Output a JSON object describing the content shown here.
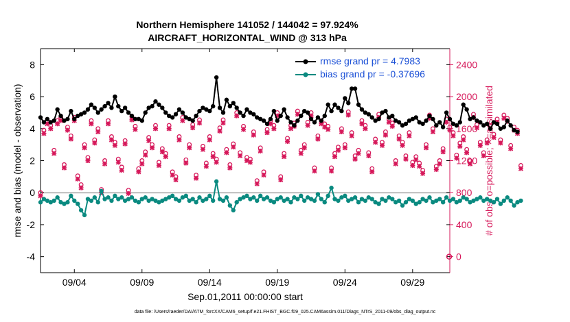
{
  "page": {
    "title_line1": "Northern Hemisphere 141052 / 144042 = 97.924%",
    "title_line2": "AIRCRAFT_HORIZONTAL_WIND @ 313 hPa",
    "footer": "data file: /Users/raeder/DAI/ATM_forcXX/CAM6_setup/f.e21.FHIST_BGC.f09_025.CAM6assim.011/Diags_NTrS_2011-09/obs_diag_output.nc"
  },
  "chart_data": {
    "type": "line",
    "title": "Northern Hemisphere 141052 / 144042 = 97.924%",
    "subtitle": "AIRCRAFT_HORIZONTAL_WIND @ 313 hPa",
    "xlabel": "Sep.01,2011 00:00:00 start",
    "ylabel_left": "rmse and bias (model - observation)",
    "ylabel_right": "# of obs: o=possible; ×=assimilated",
    "x_range_days": [
      0.5,
      30.75
    ],
    "x_tick_values": [
      3,
      8,
      13,
      18,
      23,
      28
    ],
    "x_tick_labels": [
      "09/04",
      "09/09",
      "09/14",
      "09/19",
      "09/24",
      "09/29"
    ],
    "ylim_left": [
      -5,
      9
    ],
    "yticks_left": [
      -4,
      -2,
      0,
      2,
      4,
      6,
      8
    ],
    "ylim_right": [
      -200,
      2600
    ],
    "yticks_right": [
      0,
      400,
      800,
      1200,
      1600,
      2000,
      2400
    ],
    "grid": false,
    "zero_line": true,
    "legend_position": "top-right",
    "colors": {
      "rmse": "#000000",
      "bias": "#0a8a80",
      "obs": "#d6185a",
      "legend_text": "#1a4fd6",
      "zero_line": "#bbbbbb"
    },
    "series": [
      {
        "name": "rmse grand pr = 4.7983",
        "axis": "left",
        "step_days": 0.25,
        "values": [
          4.7,
          4.4,
          4.6,
          4.4,
          4.5,
          5.2,
          4.8,
          4.5,
          4.6,
          5.1,
          4.6,
          4.8,
          4.9,
          5.0,
          5.2,
          5.5,
          5.3,
          5.0,
          5.2,
          5.4,
          5.6,
          5.3,
          6.0,
          5.4,
          5.1,
          5.3,
          5.0,
          4.8,
          4.6,
          4.6,
          4.5,
          5.0,
          5.3,
          5.4,
          5.7,
          5.5,
          5.3,
          5.0,
          4.8,
          4.7,
          4.9,
          5.2,
          5.0,
          4.7,
          4.6,
          4.5,
          4.8,
          5.1,
          5.3,
          5.2,
          5.1,
          5.4,
          7.2,
          5.3,
          5.0,
          5.8,
          5.4,
          5.6,
          5.3,
          5.0,
          4.8,
          5.2,
          5.0,
          4.9,
          4.7,
          4.6,
          4.5,
          4.3,
          4.6,
          5.1,
          4.5,
          4.8,
          5.2,
          4.7,
          4.4,
          4.2,
          4.5,
          4.8,
          5.1,
          5.0,
          4.6,
          4.4,
          4.7,
          4.5,
          4.8,
          5.5,
          5.1,
          5.5,
          5.3,
          5.1,
          5.9,
          5.6,
          6.5,
          6.5,
          5.5,
          5.2,
          5.0,
          4.9,
          4.7,
          4.5,
          4.6,
          5.0,
          5.1,
          4.7,
          4.8,
          4.5,
          4.4,
          4.2,
          4.3,
          4.5,
          4.6,
          4.7,
          4.4,
          4.3,
          4.5,
          4.8,
          4.6,
          4.2,
          4.4,
          4.1,
          5.0,
          4.6,
          4.3,
          4.2,
          4.4,
          5.5,
          5.2,
          4.6,
          4.7,
          4.5,
          4.4,
          4.2,
          4.3,
          4.0,
          4.4,
          4.3,
          4.0,
          4.1,
          4.5,
          4.2,
          3.9,
          3.8
        ]
      },
      {
        "name": "bias grand pr = -0.37696",
        "axis": "left",
        "step_days": 0.25,
        "values": [
          -0.6,
          -0.4,
          -0.5,
          -0.6,
          -0.5,
          -0.3,
          -0.6,
          -0.7,
          -0.6,
          -0.2,
          -0.5,
          -0.7,
          -1.1,
          -1.4,
          -0.4,
          -0.5,
          -0.3,
          -0.6,
          0.1,
          -0.4,
          -0.3,
          -0.5,
          -0.2,
          -0.4,
          -0.3,
          -0.5,
          -0.4,
          -0.3,
          -0.5,
          -0.6,
          -0.4,
          -0.3,
          -0.5,
          -0.4,
          -0.5,
          -0.6,
          -0.5,
          -0.4,
          -0.3,
          -0.2,
          -0.4,
          -0.5,
          -0.3,
          -0.2,
          -0.5,
          -0.4,
          -0.6,
          -0.3,
          -0.5,
          -0.4,
          -0.2,
          -0.5,
          0.7,
          -0.4,
          -0.5,
          -0.3,
          -0.8,
          -1.1,
          -0.6,
          -0.4,
          -0.3,
          -0.2,
          -0.4,
          -0.3,
          -0.5,
          -0.2,
          -0.4,
          -0.3,
          -0.5,
          -0.6,
          -0.4,
          -0.3,
          -0.5,
          -0.4,
          -0.6,
          -0.3,
          -0.4,
          -0.2,
          -0.5,
          -0.3,
          -0.4,
          -0.5,
          -0.1,
          -0.4,
          -0.6,
          -0.2,
          0.3,
          -0.4,
          -0.5,
          -0.3,
          -0.2,
          -0.5,
          -0.4,
          -0.3,
          -0.6,
          -0.4,
          -0.5,
          -0.3,
          -0.4,
          -0.6,
          -0.7,
          -0.4,
          -0.5,
          -0.3,
          -0.4,
          -0.6,
          -0.5,
          -0.8,
          -0.6,
          -0.4,
          -0.5,
          -0.7,
          -0.6,
          -0.4,
          -0.5,
          -0.3,
          -0.6,
          -0.5,
          -0.4,
          -0.6,
          -0.3,
          -0.5,
          -0.4,
          -0.6,
          -0.5,
          -0.3,
          -0.4,
          -0.6,
          -0.5,
          -0.4,
          -0.3,
          -0.5,
          -0.4,
          -0.5,
          -0.6,
          -0.4,
          -0.7,
          -0.5,
          -0.3,
          -0.5,
          -0.8,
          -0.6,
          -0.5
        ]
      },
      {
        "name": "possible",
        "axis": "right",
        "marker": "o",
        "step_days": 0.25,
        "values": [
          800,
          1580,
          1700,
          1640,
          1330,
          1700,
          1740,
          1150,
          1620,
          1510,
          1740,
          1010,
          900,
          1400,
          1240,
          1700,
          1460,
          1600,
          840,
          1200,
          1700,
          1500,
          1430,
          1220,
          1120,
          1450,
          830,
          1750,
          1630,
          1100,
          1200,
          1310,
          1490,
          1400,
          1640,
          1180,
          1350,
          1290,
          1640,
          1060,
          1000,
          1500,
          1740,
          1210,
          1400,
          1650,
          1020,
          1710,
          1380,
          1170,
          1500,
          1290,
          1220,
          1610,
          1710,
          1340,
          1150,
          1410,
          1800,
          1300,
          1630,
          1240,
          1220,
          1560,
          950,
          1360,
          1060,
          1590,
          1700,
          1640,
          1800,
          1000,
          1290,
          1480,
          1640,
          1670,
          1820,
          1330,
          1400,
          1680,
          1800,
          1110,
          1510,
          1700,
          1660,
          1630,
          1110,
          1290,
          1370,
          1600,
          1400,
          1810,
          1550,
          1260,
          1330,
          1700,
          1640,
          1300,
          1100,
          1470,
          1780,
          1430,
          1560,
          1720,
          1670,
          1200,
          1510,
          1430,
          1260,
          1550,
          1180,
          1250,
          1170,
          1080,
          1400,
          1770,
          1600,
          1130,
          1200,
          1350,
          1720,
          1620,
          1550,
          1270,
          1420,
          1500,
          1340,
          1200,
          1780,
          1650,
          1430,
          1300,
          1460,
          1640,
          1530,
          1720,
          1460,
          1770,
          1730,
          1390,
          1620,
          1580,
          1140
        ]
      },
      {
        "name": "assimilated",
        "axis": "right",
        "marker": "x",
        "step_days": 0.25,
        "values": [
          760,
          1540,
          1660,
          1600,
          1290,
          1660,
          1700,
          1110,
          1580,
          1470,
          1700,
          970,
          860,
          1360,
          1200,
          1660,
          1420,
          1560,
          800,
          1160,
          1660,
          1460,
          1390,
          1180,
          1080,
          1410,
          790,
          1710,
          1590,
          1060,
          1160,
          1270,
          1450,
          1360,
          1600,
          1140,
          1310,
          1250,
          1600,
          1020,
          960,
          1460,
          1700,
          1170,
          1360,
          1610,
          980,
          1670,
          1340,
          1130,
          1460,
          1250,
          1180,
          1570,
          1670,
          1300,
          1110,
          1370,
          1760,
          1260,
          1590,
          1200,
          1180,
          1520,
          910,
          1320,
          1020,
          1550,
          1660,
          1600,
          1760,
          960,
          1250,
          1440,
          1600,
          1630,
          1780,
          1290,
          1360,
          1640,
          1760,
          1070,
          1470,
          1660,
          1620,
          1590,
          1070,
          1250,
          1330,
          1560,
          1360,
          1770,
          1510,
          1220,
          1290,
          1660,
          1600,
          1260,
          1060,
          1430,
          1740,
          1390,
          1520,
          1680,
          1630,
          1160,
          1470,
          1390,
          1220,
          1510,
          1140,
          1210,
          1130,
          1040,
          1360,
          1730,
          1560,
          1090,
          1160,
          1310,
          1680,
          1580,
          1510,
          1230,
          1380,
          1460,
          1300,
          1160,
          1740,
          1610,
          1390,
          1260,
          1420,
          1600,
          1490,
          1680,
          1420,
          1730,
          1690,
          1350,
          1580,
          1540,
          1100
        ]
      }
    ]
  }
}
